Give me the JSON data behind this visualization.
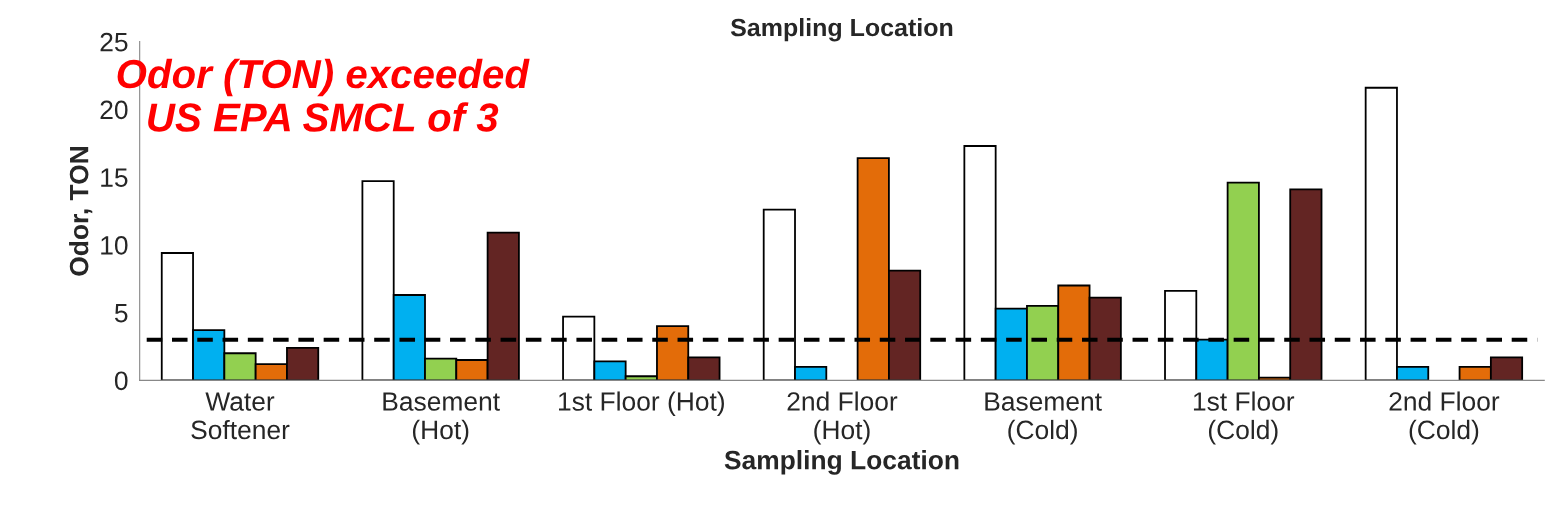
{
  "chart_data": {
    "type": "bar",
    "title": "Sampling Location",
    "xlabel": "Sampling Location",
    "ylabel": "Odor, TON",
    "categories": [
      "Water\nSoftener",
      "Basement\n(Hot)",
      "1st Floor (Hot)",
      "2nd Floor\n(Hot)",
      "Basement\n(Cold)",
      "1st Floor\n(Cold)",
      "2nd Floor\n(Cold)"
    ],
    "series": [
      {
        "color": "#ffffff",
        "values": [
          9.4,
          14.7,
          4.7,
          12.6,
          17.3,
          6.6,
          21.6
        ]
      },
      {
        "color": "#00b0f0",
        "values": [
          3.7,
          6.3,
          1.4,
          1.0,
          5.3,
          3.0,
          1.0
        ]
      },
      {
        "color": "#92d050",
        "values": [
          2.0,
          1.6,
          0.3,
          null,
          5.5,
          14.6,
          null
        ]
      },
      {
        "color": "#e36c09",
        "values": [
          1.2,
          1.5,
          4.0,
          16.4,
          7.0,
          0.2,
          1.0
        ]
      },
      {
        "color": "#632523",
        "values": [
          2.4,
          10.9,
          1.7,
          8.1,
          6.1,
          14.1,
          1.7
        ]
      }
    ],
    "ylim": [
      0,
      25
    ],
    "yticks": [
      0,
      5,
      10,
      15,
      20,
      25
    ],
    "grid": false,
    "legend": false,
    "ref_lines": [
      {
        "axis": "y",
        "value": 3,
        "color": "#000000",
        "line_style": "dashed"
      }
    ],
    "annotations": [
      "Odor (TON) exceeded\nUS EPA SMCL of 3"
    ]
  }
}
